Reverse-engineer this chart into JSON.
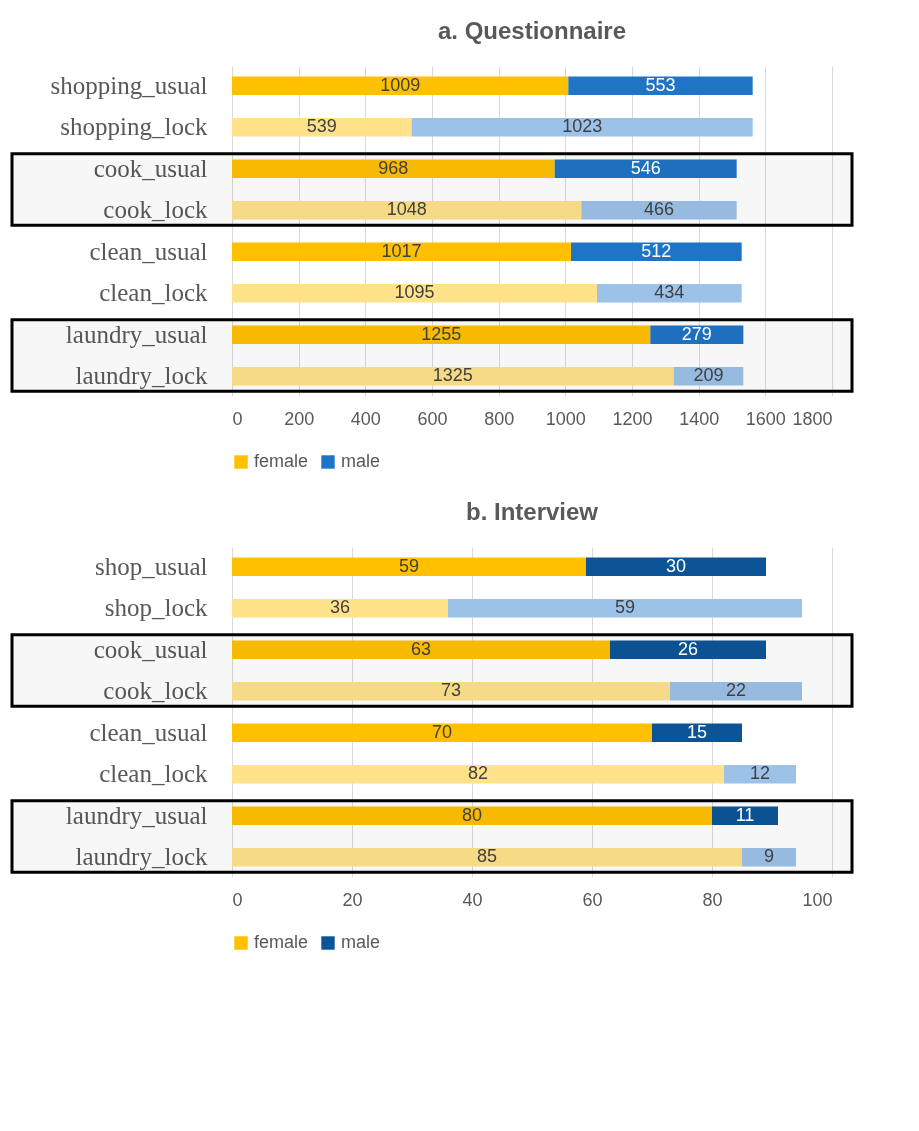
{
  "chart_data": [
    {
      "type": "bar",
      "orientation": "horizontal",
      "stacked": true,
      "title": "a. Questionnaire",
      "categories": [
        "shopping_usual",
        "shopping_lock",
        "cook_usual",
        "cook_lock",
        "clean_usual",
        "clean_lock",
        "laundry_usual",
        "laundry_lock"
      ],
      "series": [
        {
          "name": "female",
          "color": "#ffc000",
          "colors": [
            "#ffc000",
            "#ffe28a",
            "#ffc000",
            "#ffe28a",
            "#ffc000",
            "#ffe28a",
            "#ffc000",
            "#ffe28a"
          ],
          "values": [
            1009,
            539,
            968,
            1048,
            1017,
            1095,
            1255,
            1325
          ]
        },
        {
          "name": "male",
          "color": "#1f74c6",
          "colors": [
            "#1f74c6",
            "#9cc2e8",
            "#1f74c6",
            "#9cc2e8",
            "#1f74c6",
            "#9cc2e8",
            "#1f74c6",
            "#9cc2e8"
          ],
          "values": [
            553,
            1023,
            546,
            466,
            512,
            434,
            279,
            209
          ]
        }
      ],
      "xlim": [
        0,
        1800
      ],
      "xticks": [
        0,
        200,
        400,
        600,
        800,
        1000,
        1200,
        1400,
        1600,
        1800
      ],
      "grid": "x",
      "legend": "bottom",
      "data_labels": true,
      "bands": [
        {
          "axis": "y",
          "from": "cook_usual",
          "to": "cook_lock",
          "color": "#000000"
        },
        {
          "axis": "y",
          "from": "laundry_usual",
          "to": "laundry_lock",
          "color": "#000000"
        }
      ]
    },
    {
      "type": "bar",
      "orientation": "horizontal",
      "stacked": true,
      "title": "b. Interview",
      "categories": [
        "shop_usual",
        "shop_lock",
        "cook_usual",
        "cook_lock",
        "clean_usual",
        "clean_lock",
        "laundry_usual",
        "laundry_lock"
      ],
      "series": [
        {
          "name": "female",
          "color": "#ffc000",
          "colors": [
            "#ffc000",
            "#ffe28a",
            "#ffc000",
            "#ffe28a",
            "#ffc000",
            "#ffe28a",
            "#ffc000",
            "#ffe28a"
          ],
          "values": [
            59,
            36,
            63,
            73,
            70,
            82,
            80,
            85
          ]
        },
        {
          "name": "male",
          "color": "#0d5497",
          "colors": [
            "#0d5497",
            "#9cc2e8",
            "#0d5497",
            "#9cc2e8",
            "#0d5497",
            "#9cc2e8",
            "#0d5497",
            "#9cc2e8"
          ],
          "values": [
            30,
            59,
            26,
            22,
            15,
            12,
            11,
            9
          ]
        }
      ],
      "xlim": [
        0,
        100
      ],
      "xticks": [
        0,
        20,
        40,
        60,
        80,
        100
      ],
      "grid": "x",
      "legend": "bottom",
      "data_labels": true,
      "bands": [
        {
          "axis": "y",
          "from": "cook_usual",
          "to": "cook_lock",
          "color": "#000000"
        },
        {
          "axis": "y",
          "from": "laundry_usual",
          "to": "laundry_lock",
          "color": "#000000"
        }
      ]
    }
  ]
}
